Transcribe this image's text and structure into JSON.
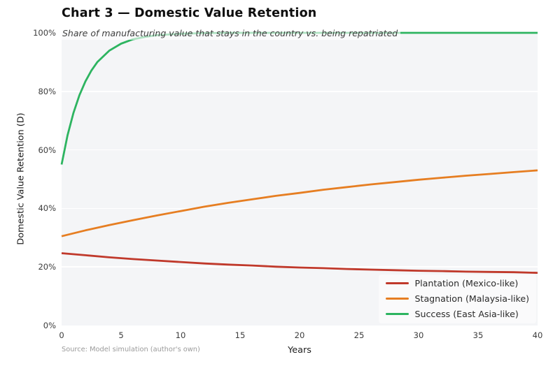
{
  "figure": {
    "title": "Chart 3 — Domestic Value Retention",
    "subtitle": "Share of manufacturing value that stays in the country vs. being repatriated",
    "source_note": "Source: Model simulation (author's own)"
  },
  "chart_data": {
    "type": "line",
    "title": "Chart 3 — Domestic Value Retention",
    "subtitle": "Share of manufacturing value that stays in the country vs. being repatriated",
    "xlabel": "Years",
    "ylabel": "Domestic Value Retention (D)",
    "xlim": [
      0,
      40
    ],
    "ylim": [
      0,
      100
    ],
    "x_ticks": [
      0,
      5,
      10,
      15,
      20,
      25,
      30,
      35,
      40
    ],
    "y_ticks": [
      0,
      20,
      40,
      60,
      80,
      100
    ],
    "y_tick_suffix": "%",
    "grid": "horizontal white gridlines on light panel",
    "plot_bg_color": "#f4f5f7",
    "grid_color": "#ffffff",
    "legend_position": "lower right",
    "series": [
      {
        "name": "Plantation (Mexico-like)",
        "color": "#c0392b",
        "x": [
          0,
          2,
          4,
          6,
          8,
          10,
          12,
          14,
          16,
          18,
          20,
          22,
          24,
          26,
          28,
          30,
          32,
          34,
          36,
          38,
          40
        ],
        "values": [
          24.7,
          24.0,
          23.3,
          22.7,
          22.2,
          21.7,
          21.2,
          20.8,
          20.5,
          20.1,
          19.8,
          19.6,
          19.3,
          19.1,
          18.9,
          18.7,
          18.6,
          18.4,
          18.3,
          18.2,
          18.0
        ]
      },
      {
        "name": "Stagnation (Malaysia-like)",
        "color": "#e67e22",
        "x": [
          0,
          2,
          4,
          6,
          8,
          10,
          12,
          14,
          16,
          18,
          20,
          22,
          24,
          26,
          28,
          30,
          32,
          34,
          36,
          38,
          40
        ],
        "values": [
          30.5,
          32.5,
          34.3,
          36.0,
          37.6,
          39.1,
          40.6,
          41.9,
          43.1,
          44.3,
          45.3,
          46.4,
          47.3,
          48.2,
          49.0,
          49.8,
          50.5,
          51.2,
          51.8,
          52.4,
          53.0
        ]
      },
      {
        "name": "Success (East Asia-like)",
        "color": "#2db460",
        "x": [
          0,
          0.5,
          1,
          1.5,
          2,
          2.5,
          3,
          4,
          5,
          6,
          7,
          8,
          10,
          12,
          14,
          16,
          20,
          25,
          30,
          35,
          40
        ],
        "values": [
          55.0,
          65.0,
          72.7,
          78.7,
          83.4,
          87.1,
          90.0,
          93.9,
          96.3,
          97.8,
          98.6,
          99.2,
          99.7,
          99.9,
          100.0,
          100.0,
          100.0,
          100.0,
          100.0,
          100.0,
          100.0
        ]
      }
    ]
  }
}
